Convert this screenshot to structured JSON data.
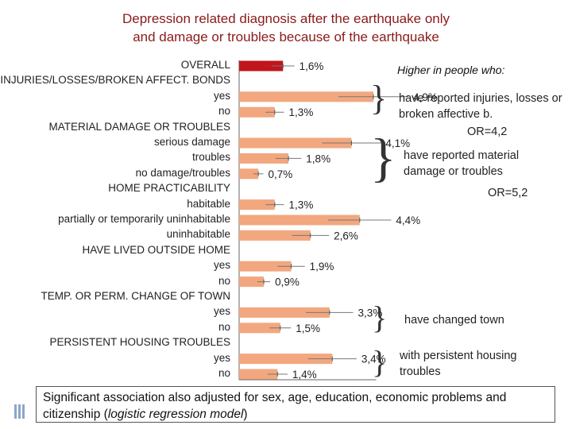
{
  "title": {
    "line1": "Depression related diagnosis after the earthquake only",
    "line2": "and damage or troubles because of the earthquake"
  },
  "colors": {
    "overall_bar": "#c0161c",
    "bars": "#f2a77f",
    "title": "#8b1a1a"
  },
  "chart_data": {
    "type": "bar",
    "orientation": "horizontal",
    "rows": [
      {
        "label": "OVERALL",
        "kind": "header",
        "value": 1.6,
        "value_label": "1,6%",
        "highlight": true
      },
      {
        "label": "INJURIES/LOSSES/BROKEN AFFECT. BONDS",
        "kind": "header"
      },
      {
        "label": "yes",
        "kind": "item",
        "value": 4.9,
        "value_label": "4,9%"
      },
      {
        "label": "no",
        "kind": "item",
        "value": 1.3,
        "value_label": "1,3%"
      },
      {
        "label": "MATERIAL DAMAGE OR TROUBLES",
        "kind": "header"
      },
      {
        "label": "serious damage",
        "kind": "item",
        "value": 4.1,
        "value_label": "4,1%"
      },
      {
        "label": "troubles",
        "kind": "item",
        "value": 1.8,
        "value_label": "1,8%"
      },
      {
        "label": "no damage/troubles",
        "kind": "item",
        "value": 0.7,
        "value_label": "0,7%"
      },
      {
        "label": "HOME PRACTICABILITY",
        "kind": "header"
      },
      {
        "label": "habitable",
        "kind": "item",
        "value": 1.3,
        "value_label": "1,3%"
      },
      {
        "label": "partially or temporarily uninhabitable",
        "kind": "item",
        "value": 4.4,
        "value_label": "4,4%"
      },
      {
        "label": "uninhabitable",
        "kind": "item",
        "value": 2.6,
        "value_label": "2,6%"
      },
      {
        "label": "HAVE LIVED OUTSIDE HOME",
        "kind": "header"
      },
      {
        "label": "yes",
        "kind": "item",
        "value": 1.9,
        "value_label": "1,9%"
      },
      {
        "label": "no",
        "kind": "item",
        "value": 0.9,
        "value_label": "0,9%"
      },
      {
        "label": "TEMP. OR PERM. CHANGE OF TOWN",
        "kind": "header"
      },
      {
        "label": "yes",
        "kind": "item",
        "value": 3.3,
        "value_label": "3,3%"
      },
      {
        "label": "no",
        "kind": "item",
        "value": 1.5,
        "value_label": "1,5%"
      },
      {
        "label": "PERSISTENT HOUSING TROUBLES",
        "kind": "header"
      },
      {
        "label": "yes",
        "kind": "item",
        "value": 3.4,
        "value_label": "3,4%"
      },
      {
        "label": "no",
        "kind": "item",
        "value": 1.4,
        "value_label": "1,4%"
      }
    ]
  },
  "annotations": {
    "heading": "Higher in people who:",
    "injuries": "have reported injuries, losses or broken affective b.",
    "injuries_or": "OR=4,2",
    "material": "have reported  material damage or troubles",
    "material_or": "OR=5,2",
    "town": "have changed town",
    "housing": "with persistent housing troubles"
  },
  "footer": {
    "text_start": "Significant association also adjusted for sex, age, education, economic problems and citizenship (",
    "text_italic": "logistic regression model",
    "text_end": ")"
  }
}
